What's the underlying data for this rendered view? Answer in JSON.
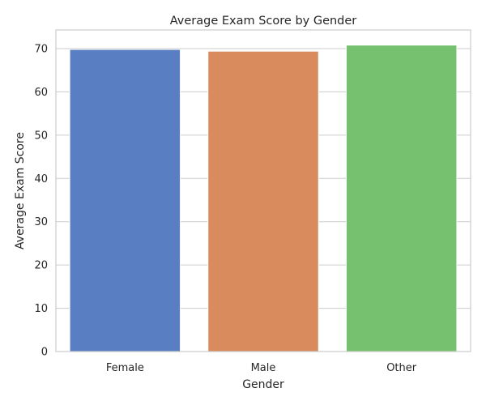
{
  "chart_data": {
    "type": "bar",
    "title": "Average Exam Score by Gender",
    "xlabel": "Gender",
    "ylabel": "Average Exam Score",
    "categories": [
      "Female",
      "Male",
      "Other"
    ],
    "values": [
      69.8,
      69.4,
      70.8
    ],
    "colors": [
      "#5a7ec2",
      "#d98b5e",
      "#75c16f"
    ],
    "ylim": [
      0,
      74.3
    ],
    "yticks": [
      0,
      10,
      20,
      30,
      40,
      50,
      60,
      70
    ],
    "grid": "horizontal",
    "legend": "none"
  }
}
